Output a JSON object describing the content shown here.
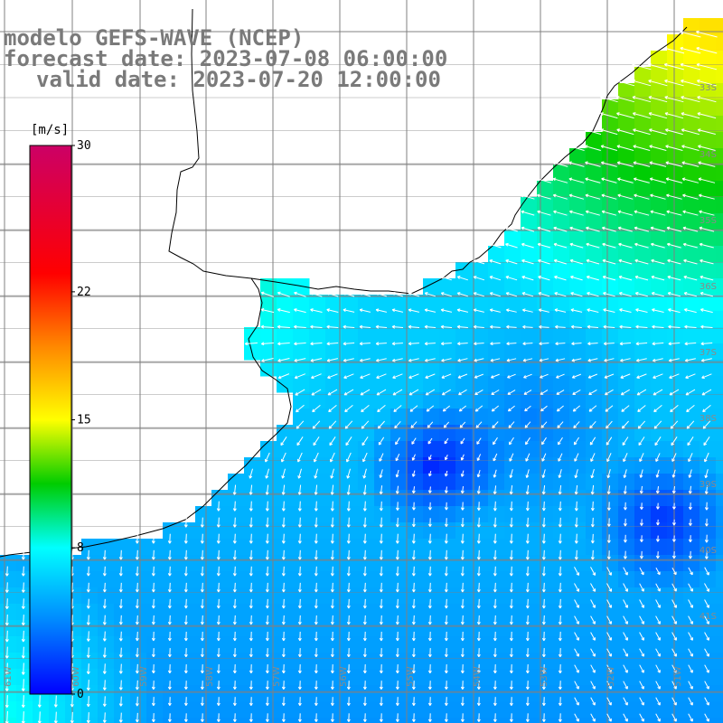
{
  "title": {
    "model": "modelo GEFS-WAVE (NCEP)",
    "forecast": "forecast date: 2023-07-08 06:00:00",
    "valid": "valid date: 2023-07-20 12:00:00"
  },
  "colorbar": {
    "unit": "[m/s]",
    "ticks": [
      {
        "value": 30,
        "label": "30"
      },
      {
        "value": 22,
        "label": "22"
      },
      {
        "value": 15,
        "label": "15"
      },
      {
        "value": 8,
        "label": "8"
      },
      {
        "value": 0,
        "label": "0"
      }
    ],
    "min": 0,
    "max": 30,
    "stops": [
      {
        "value": 0,
        "color": "#0000ff"
      },
      {
        "value": 4,
        "color": "#0088ff"
      },
      {
        "value": 8,
        "color": "#00ffff"
      },
      {
        "value": 11.5,
        "color": "#00cc00"
      },
      {
        "value": 15,
        "color": "#ffff00"
      },
      {
        "value": 19,
        "color": "#ff8800"
      },
      {
        "value": 23,
        "color": "#ff0000"
      },
      {
        "value": 30,
        "color": "#cc0066"
      }
    ]
  },
  "map": {
    "lat_labels": [
      "33S",
      "34S",
      "35S",
      "36S",
      "37S",
      "38S",
      "39S",
      "40S",
      "41S"
    ],
    "lon_labels": [
      "61W",
      "60W",
      "59W",
      "58W",
      "57W",
      "56W",
      "55W",
      "54W",
      "53W",
      "52W",
      "51W"
    ],
    "land_color": "#ffffff",
    "grid_color": "#808080",
    "coast_color": "#000000",
    "arrow_color": "#ffffff"
  }
}
